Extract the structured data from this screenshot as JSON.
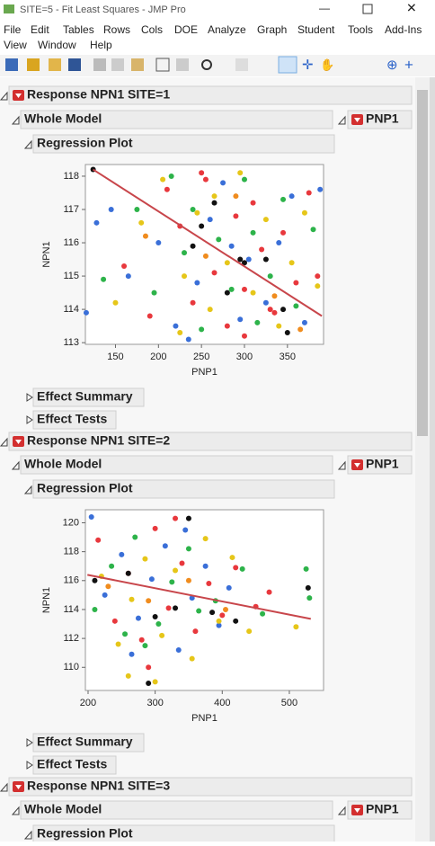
{
  "window": {
    "title": "SITE=5 - Fit Least Squares - JMP Pro"
  },
  "menu": [
    "File",
    "Edit",
    "Tables",
    "Rows",
    "Cols",
    "DOE",
    "Analyze",
    "Graph",
    "Student",
    "Tools",
    "Add-Ins",
    "View",
    "Window",
    "Help"
  ],
  "reports": [
    {
      "title": "Response NPN1 SITE=1",
      "whole_model": "Whole Model",
      "effect_button": "PNP1",
      "regression": "Regression Plot",
      "effect_summary": "Effect Summary",
      "effect_tests": "Effect Tests"
    },
    {
      "title": "Response NPN1 SITE=2",
      "whole_model": "Whole Model",
      "effect_button": "PNP1",
      "regression": "Regression Plot",
      "effect_summary": "Effect Summary",
      "effect_tests": "Effect Tests"
    },
    {
      "title": "Response NPN1 SITE=3",
      "whole_model": "Whole Model",
      "effect_button": "PNP1",
      "regression": "Regression Plot"
    }
  ],
  "chart_data": [
    {
      "type": "scatter",
      "x_label": "PNP1",
      "y_label": "NPN1",
      "xlim": [
        115,
        392
      ],
      "ylim": [
        112.95,
        118.35
      ],
      "xticks": [
        150,
        200,
        250,
        300,
        350
      ],
      "yticks": [
        113,
        114,
        115,
        116,
        117,
        118
      ],
      "series": [
        {
          "color": "#e8383d",
          "x": [
            160,
            190,
            210,
            225,
            240,
            255,
            265,
            280,
            290,
            300,
            310,
            320,
            335,
            345,
            360,
            375,
            385,
            250,
            300,
            330
          ],
          "y": [
            115.3,
            113.8,
            117.6,
            116.5,
            114.2,
            117.9,
            115.1,
            113.5,
            116.8,
            114.6,
            117.2,
            115.8,
            113.9,
            116.3,
            114.8,
            117.5,
            115.0,
            118.1,
            113.2,
            114.0
          ]
        },
        {
          "color": "#3a6fd8",
          "x": [
            116,
            128,
            145,
            165,
            200,
            220,
            245,
            260,
            275,
            295,
            305,
            325,
            340,
            355,
            370,
            388,
            285,
            235
          ],
          "y": [
            113.9,
            116.6,
            117.0,
            115.0,
            116.0,
            113.5,
            114.8,
            116.7,
            117.8,
            113.7,
            115.5,
            114.2,
            116.0,
            117.4,
            113.6,
            117.6,
            115.9,
            113.1
          ]
        },
        {
          "color": "#2db34a",
          "x": [
            136,
            175,
            195,
            215,
            230,
            250,
            270,
            285,
            300,
            315,
            330,
            345,
            360,
            380,
            240,
            310
          ],
          "y": [
            114.9,
            117.0,
            114.5,
            118.0,
            115.7,
            113.4,
            116.1,
            114.6,
            117.9,
            113.6,
            115.0,
            117.3,
            114.1,
            116.4,
            117.0,
            116.3
          ]
        },
        {
          "color": "#e6c619",
          "x": [
            150,
            180,
            205,
            225,
            245,
            260,
            280,
            295,
            310,
            325,
            340,
            355,
            370,
            385,
            265,
            230
          ],
          "y": [
            114.2,
            116.6,
            117.9,
            113.3,
            116.9,
            114.0,
            115.4,
            118.1,
            114.5,
            116.7,
            113.5,
            115.4,
            116.9,
            114.7,
            117.4,
            115.0
          ]
        },
        {
          "color": "#f08c1e",
          "x": [
            185,
            255,
            290,
            335,
            365
          ],
          "y": [
            116.2,
            115.6,
            117.4,
            114.4,
            113.4
          ]
        },
        {
          "color": "#111111",
          "x": [
            124,
            240,
            250,
            265,
            295,
            300,
            325,
            350,
            280,
            345
          ],
          "y": [
            118.2,
            115.9,
            116.5,
            117.2,
            115.5,
            115.4,
            115.5,
            113.3,
            114.5,
            114.0
          ]
        }
      ],
      "fit": {
        "color": "#c8464b",
        "x": [
          124,
          390
        ],
        "y": [
          118.2,
          113.8
        ]
      }
    },
    {
      "type": "scatter",
      "x_label": "PNP1",
      "y_label": "NPN1",
      "xlim": [
        196,
        551
      ],
      "ylim": [
        108.4,
        120.9
      ],
      "xticks": [
        200,
        300,
        400,
        500
      ],
      "yticks": [
        110,
        112,
        114,
        116,
        118,
        120
      ],
      "series": [
        {
          "color": "#e8383d",
          "x": [
            215,
            240,
            260,
            280,
            300,
            320,
            340,
            360,
            380,
            400,
            420,
            450,
            470,
            290,
            330
          ],
          "y": [
            118.8,
            113.2,
            116.5,
            111.9,
            119.6,
            114.1,
            117.2,
            112.5,
            115.8,
            113.6,
            116.9,
            114.2,
            115.2,
            110.0,
            120.3
          ]
        },
        {
          "color": "#3a6fd8",
          "x": [
            205,
            225,
            250,
            275,
            295,
            315,
            335,
            355,
            375,
            395,
            410,
            265,
            345
          ],
          "y": [
            120.4,
            115.0,
            117.8,
            113.4,
            116.1,
            118.4,
            111.2,
            114.8,
            117.0,
            112.9,
            115.5,
            110.9,
            119.5
          ]
        },
        {
          "color": "#2db34a",
          "x": [
            210,
            235,
            255,
            270,
            305,
            325,
            350,
            365,
            390,
            430,
            460,
            525,
            285,
            530
          ],
          "y": [
            114.0,
            117.0,
            112.3,
            119.0,
            113.0,
            115.9,
            118.2,
            113.9,
            114.6,
            116.8,
            113.7,
            116.8,
            111.5,
            114.8
          ]
        },
        {
          "color": "#e6c619",
          "x": [
            220,
            245,
            265,
            285,
            310,
            330,
            355,
            375,
            395,
            415,
            440,
            510,
            300,
            260
          ],
          "y": [
            116.3,
            111.6,
            114.7,
            117.5,
            112.2,
            116.7,
            110.6,
            118.9,
            113.2,
            117.6,
            112.5,
            112.8,
            109.0,
            109.4
          ]
        },
        {
          "color": "#f08c1e",
          "x": [
            230,
            290,
            350,
            405
          ],
          "y": [
            115.6,
            114.6,
            116.0,
            114.0
          ]
        },
        {
          "color": "#111111",
          "x": [
            290,
            260,
            330,
            385,
            350,
            300,
            420,
            528,
            210
          ],
          "y": [
            108.9,
            116.5,
            114.1,
            113.8,
            120.3,
            113.5,
            113.2,
            115.5,
            116.0
          ]
        }
      ],
      "fit": {
        "color": "#c8464b",
        "x": [
          199,
          532
        ],
        "y": [
          116.4,
          113.35
        ]
      }
    }
  ]
}
